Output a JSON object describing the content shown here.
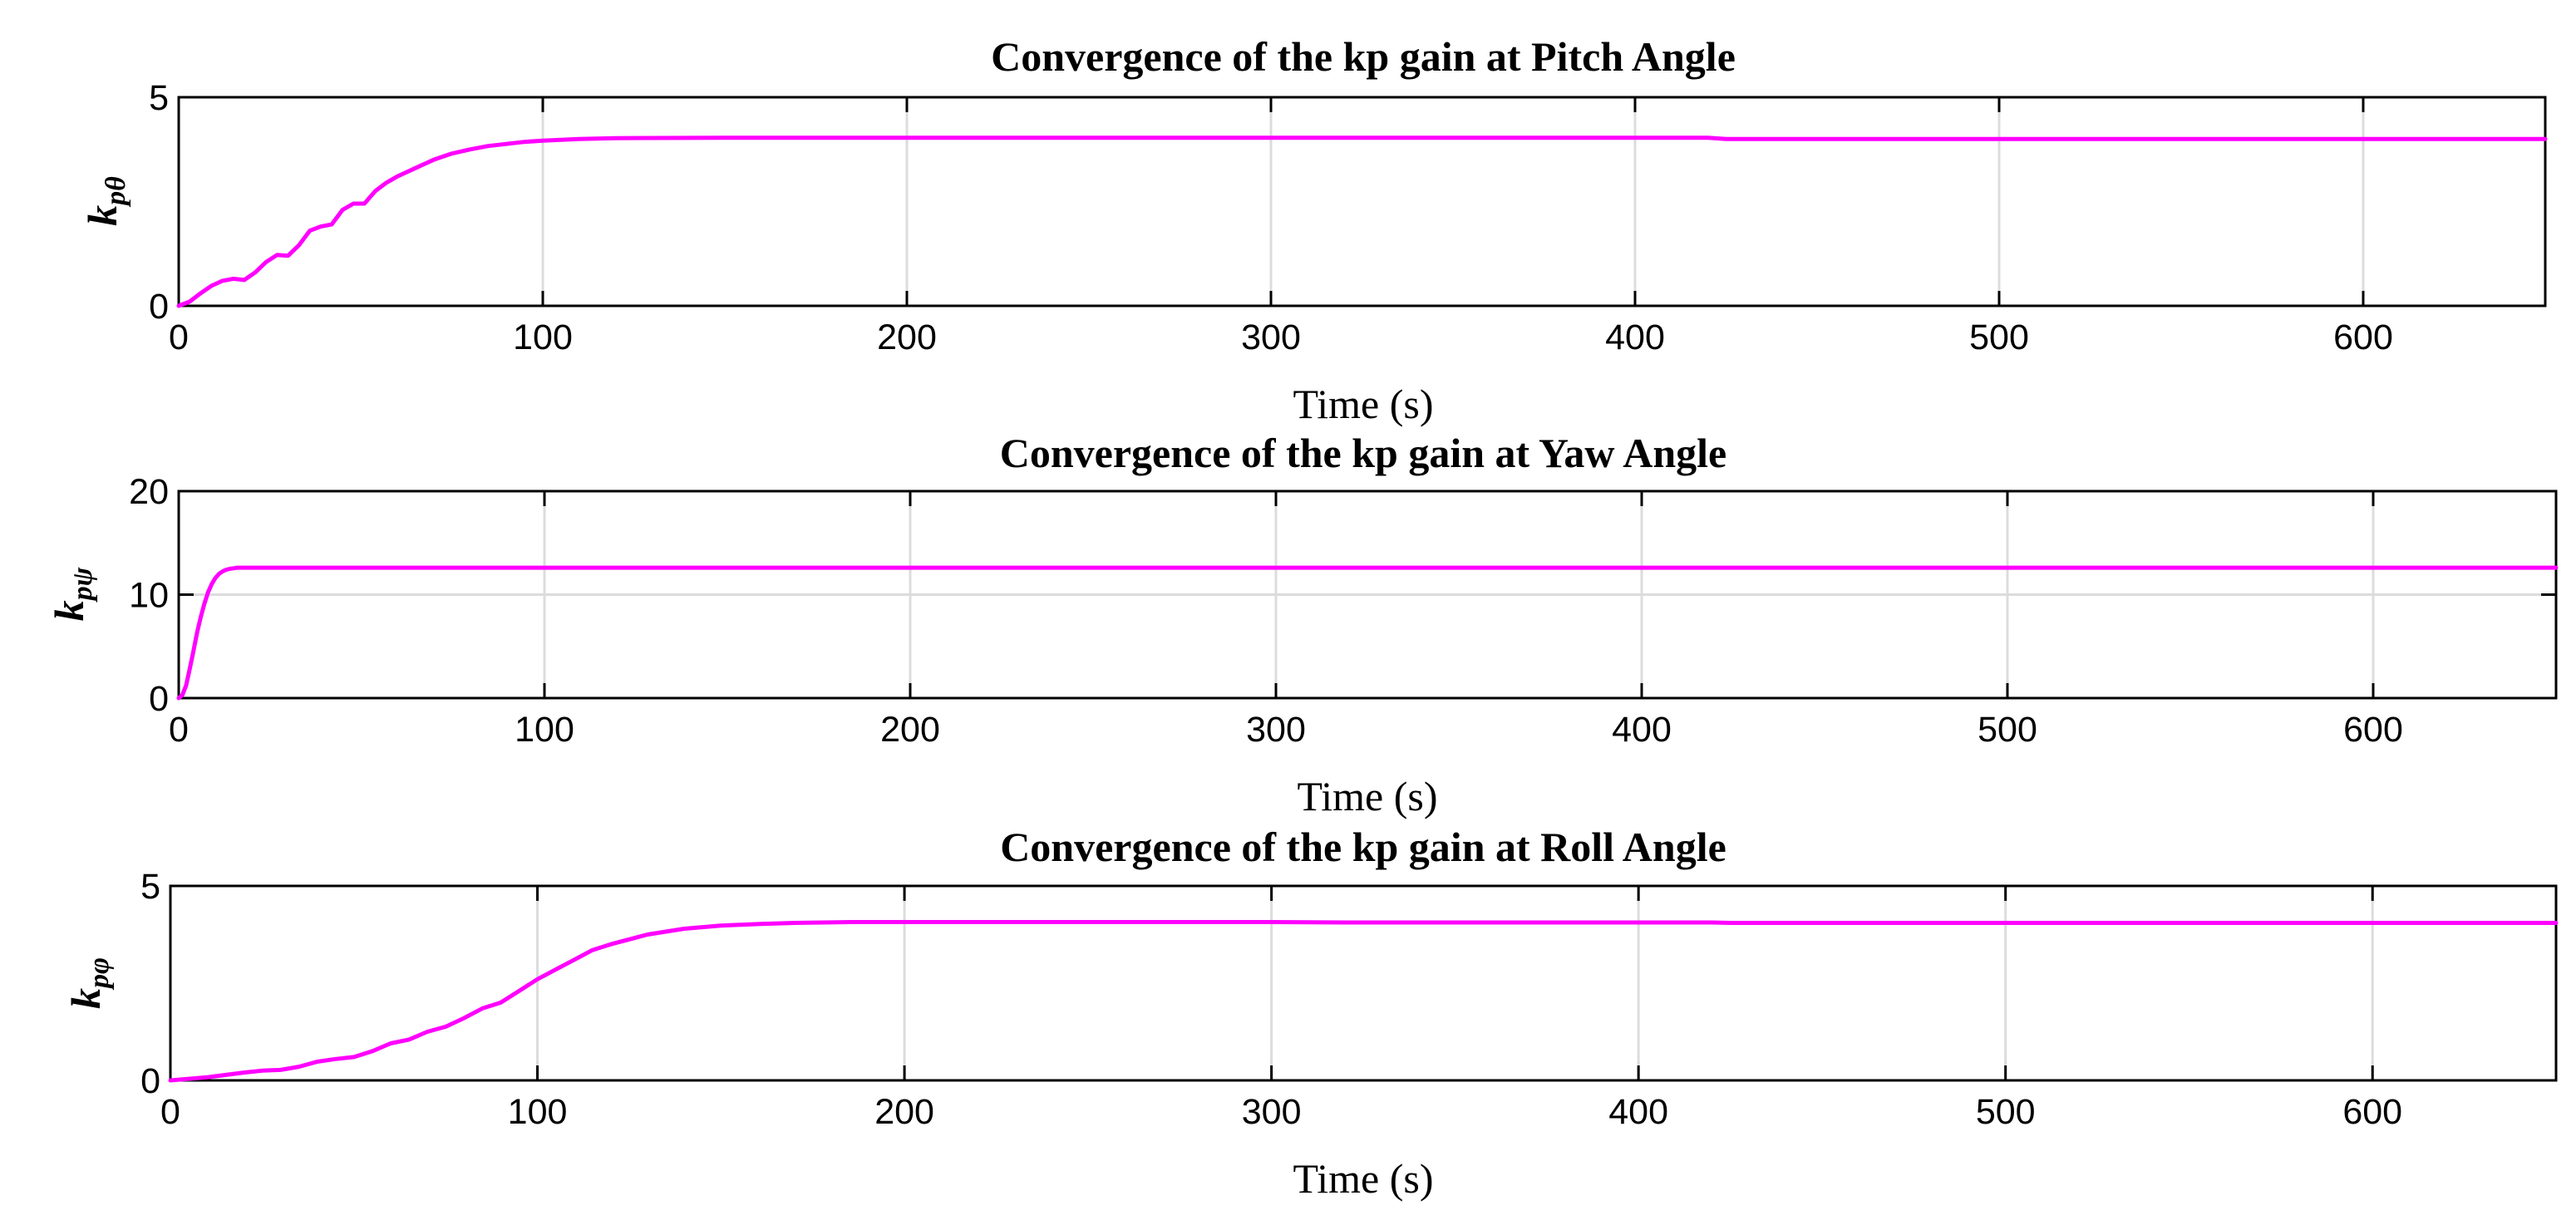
{
  "colors": {
    "series": "#ff00ff"
  },
  "chart_data": [
    {
      "type": "line",
      "title": "Convergence of the kp gain at Pitch Angle",
      "xlabel": "Time (s)",
      "ylabel_main": "k",
      "ylabel_sub": "pθ",
      "xlim": [
        0,
        650
      ],
      "ylim": [
        0,
        5
      ],
      "xticks": [
        0,
        100,
        200,
        300,
        400,
        500,
        600
      ],
      "yticks": [
        0,
        5
      ],
      "grid": true,
      "series": [
        {
          "x": [
            0,
            3,
            6,
            9,
            12,
            15,
            18,
            21,
            24,
            27,
            30,
            33,
            36,
            39,
            42,
            45,
            48,
            51,
            54,
            57,
            60,
            65,
            70,
            75,
            80,
            85,
            90,
            95,
            100,
            110,
            120,
            150,
            200,
            250,
            300,
            350,
            400,
            420,
            425,
            450,
            500,
            550,
            600,
            650
          ],
          "y": [
            0,
            0.1,
            0.3,
            0.48,
            0.6,
            0.65,
            0.62,
            0.8,
            1.05,
            1.22,
            1.2,
            1.45,
            1.8,
            1.9,
            1.95,
            2.3,
            2.45,
            2.45,
            2.75,
            2.95,
            3.1,
            3.3,
            3.5,
            3.65,
            3.75,
            3.83,
            3.88,
            3.93,
            3.96,
            4.0,
            4.02,
            4.03,
            4.03,
            4.03,
            4.03,
            4.03,
            4.03,
            4.03,
            4.0,
            4.0,
            4.0,
            4.0,
            4.0,
            4.0
          ]
        }
      ]
    },
    {
      "type": "line",
      "title": "Convergence of the kp gain at Yaw Angle",
      "xlabel": "Time (s)",
      "ylabel_main": "k",
      "ylabel_sub": "pψ",
      "xlim": [
        0,
        650
      ],
      "ylim": [
        0,
        20
      ],
      "xticks": [
        0,
        100,
        200,
        300,
        400,
        500,
        600
      ],
      "yticks": [
        0,
        10,
        20
      ],
      "grid": true,
      "series": [
        {
          "x": [
            0,
            1,
            2,
            3,
            4,
            5,
            6,
            7,
            8,
            9,
            10,
            11,
            12,
            13,
            14,
            15,
            16,
            18,
            20,
            25,
            30,
            50,
            100,
            200,
            300,
            400,
            500,
            600,
            650
          ],
          "y": [
            0,
            0.3,
            1.2,
            2.8,
            4.5,
            6.3,
            7.8,
            9.1,
            10.2,
            11.0,
            11.6,
            12.0,
            12.25,
            12.4,
            12.5,
            12.55,
            12.6,
            12.6,
            12.6,
            12.6,
            12.6,
            12.6,
            12.6,
            12.6,
            12.6,
            12.6,
            12.6,
            12.6,
            12.6
          ]
        }
      ]
    },
    {
      "type": "line",
      "title": "Convergence of the kp gain at Roll Angle",
      "xlabel": "Time (s)",
      "ylabel_main": "k",
      "ylabel_sub": "pφ",
      "xlim": [
        0,
        650
      ],
      "ylim": [
        0,
        5
      ],
      "xticks": [
        0,
        100,
        200,
        300,
        400,
        500,
        600
      ],
      "yticks": [
        0,
        5
      ],
      "grid": true,
      "series": [
        {
          "x": [
            0,
            10,
            20,
            25,
            30,
            35,
            40,
            45,
            50,
            55,
            60,
            65,
            70,
            75,
            80,
            85,
            90,
            95,
            100,
            105,
            110,
            115,
            120,
            130,
            140,
            150,
            160,
            170,
            185,
            200,
            250,
            300,
            320,
            350,
            400,
            420,
            425,
            450,
            500,
            550,
            600,
            650
          ],
          "y": [
            0,
            0.08,
            0.2,
            0.25,
            0.27,
            0.35,
            0.48,
            0.55,
            0.6,
            0.75,
            0.95,
            1.05,
            1.25,
            1.38,
            1.6,
            1.85,
            2.0,
            2.3,
            2.6,
            2.85,
            3.1,
            3.35,
            3.5,
            3.75,
            3.9,
            3.98,
            4.02,
            4.05,
            4.07,
            4.07,
            4.07,
            4.07,
            4.06,
            4.06,
            4.06,
            4.06,
            4.05,
            4.05,
            4.05,
            4.05,
            4.05,
            4.05
          ]
        }
      ]
    }
  ]
}
